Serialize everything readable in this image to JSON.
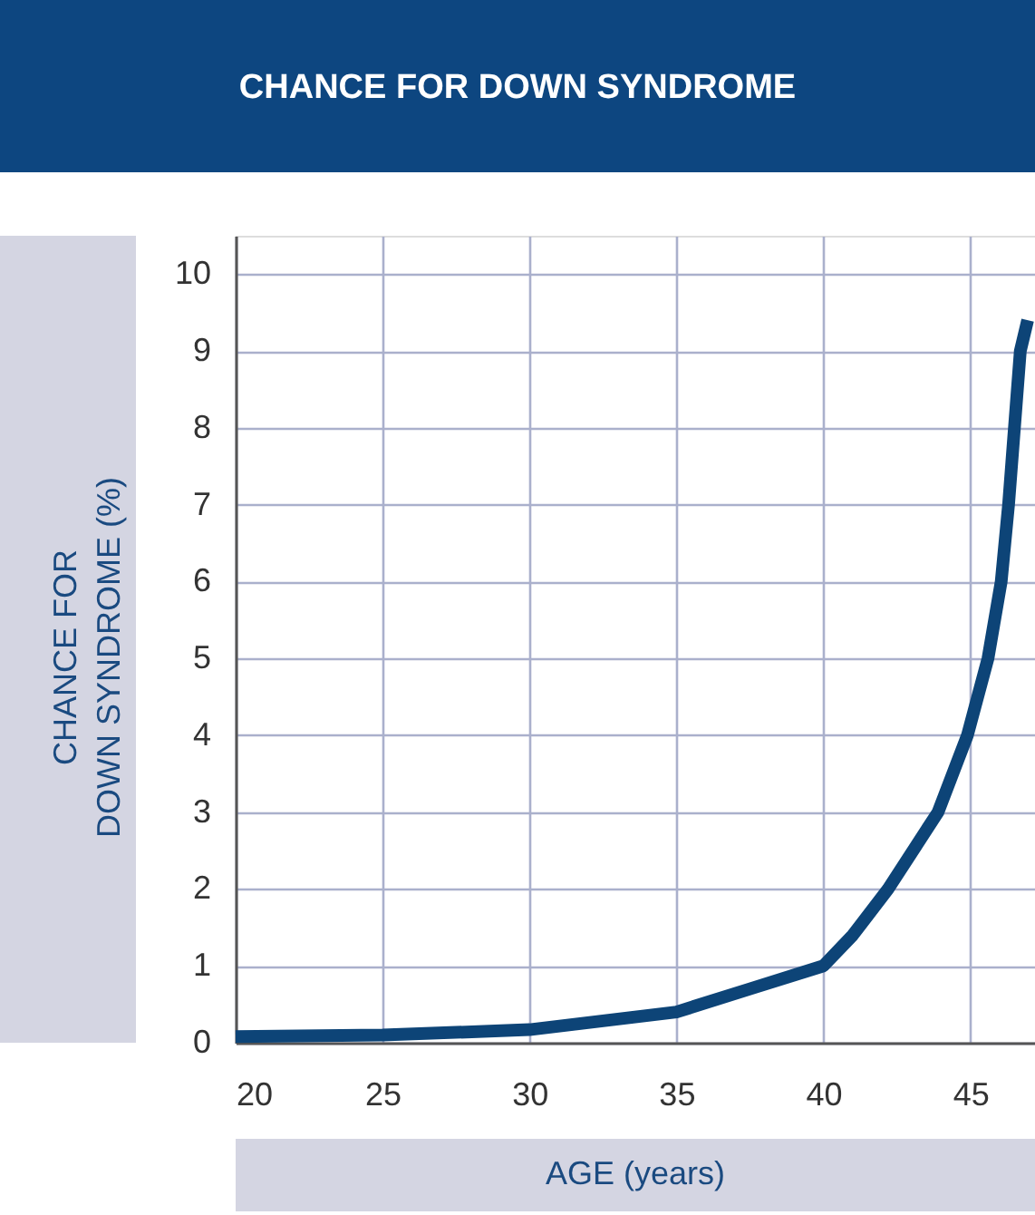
{
  "chart_data": {
    "type": "line",
    "title": "CHANCE FOR DOWN SYNDROME",
    "xlabel": "AGE (years)",
    "ylabel": "CHANCE FOR\nDOWN SYNDROME (%)",
    "xlim": [
      20,
      47.2
    ],
    "ylim": [
      0,
      10.5
    ],
    "xticks": [
      20,
      25,
      30,
      35,
      40,
      45
    ],
    "yticks": [
      0,
      1,
      2,
      3,
      4,
      5,
      6,
      7,
      8,
      9,
      10
    ],
    "grid": true,
    "series": [
      {
        "color": "#0d4477",
        "x": [
          20,
          25,
          30,
          35,
          37.5,
          40,
          41,
          42.2,
          43.9,
          44.9,
          45.6,
          46.05,
          46.3,
          46.5,
          46.7,
          46.95
        ],
        "values": [
          0.08,
          0.1,
          0.17,
          0.4,
          0.7,
          1.0,
          1.4,
          2.0,
          3.0,
          4.0,
          5.0,
          6.0,
          7.0,
          8.0,
          9.0,
          9.4
        ]
      }
    ]
  }
}
